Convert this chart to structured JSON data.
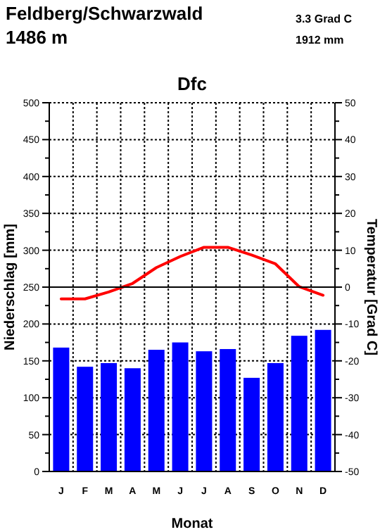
{
  "chart_data": {
    "type": "bar",
    "title": "Feldberg/Schwarzwald",
    "subtitle": "1486 m",
    "annotations": [
      "3.3 Grad C",
      "1912 mm",
      "Dfc"
    ],
    "xlabel": "Monat",
    "ylabel": "Niederschlag [mm]",
    "y2label": "Temperatur [Grad C]",
    "categories": [
      "J",
      "F",
      "M",
      "A",
      "M",
      "J",
      "J",
      "A",
      "S",
      "O",
      "N",
      "D"
    ],
    "series": [
      {
        "color": "#0000ff",
        "values": [
          168,
          142,
          147,
          140,
          165,
          175,
          163,
          166,
          127,
          147,
          184,
          192
        ]
      },
      {
        "type": "line",
        "axis": "y2",
        "color": "#ff0000",
        "values": [
          -3.2,
          -3.2,
          -1.3,
          1.0,
          5.3,
          8.3,
          10.8,
          10.8,
          8.7,
          6.3,
          0.1,
          -2.2
        ]
      }
    ],
    "ylim": [
      0,
      500
    ],
    "yticks": [
      0,
      {
        "value": 25,
        "label": null
      },
      50,
      {
        "value": 75,
        "label": null
      },
      100,
      {
        "value": 125,
        "label": null
      },
      150,
      {
        "value": 175,
        "label": null
      },
      200,
      {
        "value": 225,
        "label": null
      },
      250,
      {
        "value": 275,
        "label": null
      },
      300,
      {
        "value": 325,
        "label": null
      },
      350,
      {
        "value": 375,
        "label": null
      },
      400,
      {
        "value": 425,
        "label": null
      },
      450,
      {
        "value": 475,
        "label": null
      },
      500
    ],
    "y2lim": [
      -50,
      50
    ],
    "y2ticks": [
      -50,
      {
        "value": -45,
        "label": null
      },
      -40,
      {
        "value": -35,
        "label": null
      },
      -30,
      {
        "value": -25,
        "label": null
      },
      -20,
      {
        "value": -15,
        "label": null
      },
      -10,
      {
        "value": -5,
        "label": null
      },
      0,
      {
        "value": 5,
        "label": null
      },
      10,
      {
        "value": 15,
        "label": null
      },
      20,
      {
        "value": 25,
        "label": null
      },
      30,
      {
        "value": 35,
        "label": null
      },
      40,
      {
        "value": 45,
        "label": null
      },
      50
    ],
    "ref_lines": [
      {
        "axis": "y2",
        "value": 0,
        "color": "#000000"
      }
    ],
    "grid": true
  }
}
